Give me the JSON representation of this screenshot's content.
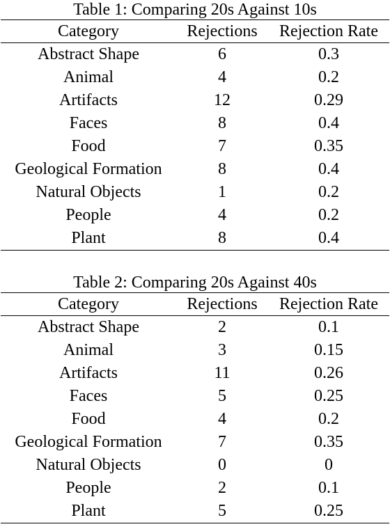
{
  "tables": [
    {
      "caption": "Table 1: Comparing 20s Against 10s",
      "headers": [
        "Category",
        "Rejections",
        "Rejection Rate"
      ],
      "rows": [
        [
          "Abstract Shape",
          "6",
          "0.3"
        ],
        [
          "Animal",
          "4",
          "0.2"
        ],
        [
          "Artifacts",
          "12",
          "0.29"
        ],
        [
          "Faces",
          "8",
          "0.4"
        ],
        [
          "Food",
          "7",
          "0.35"
        ],
        [
          "Geological Formation",
          "8",
          "0.4"
        ],
        [
          "Natural Objects",
          "1",
          "0.2"
        ],
        [
          "People",
          "4",
          "0.2"
        ],
        [
          "Plant",
          "8",
          "0.4"
        ]
      ]
    },
    {
      "caption": "Table 2: Comparing 20s Against 40s",
      "headers": [
        "Category",
        "Rejections",
        "Rejection Rate"
      ],
      "rows": [
        [
          "Abstract Shape",
          "2",
          "0.1"
        ],
        [
          "Animal",
          "3",
          "0.15"
        ],
        [
          "Artifacts",
          "11",
          "0.26"
        ],
        [
          "Faces",
          "5",
          "0.25"
        ],
        [
          "Food",
          "4",
          "0.2"
        ],
        [
          "Geological Formation",
          "7",
          "0.35"
        ],
        [
          "Natural Objects",
          "0",
          "0"
        ],
        [
          "People",
          "2",
          "0.1"
        ],
        [
          "Plant",
          "5",
          "0.25"
        ]
      ]
    }
  ]
}
